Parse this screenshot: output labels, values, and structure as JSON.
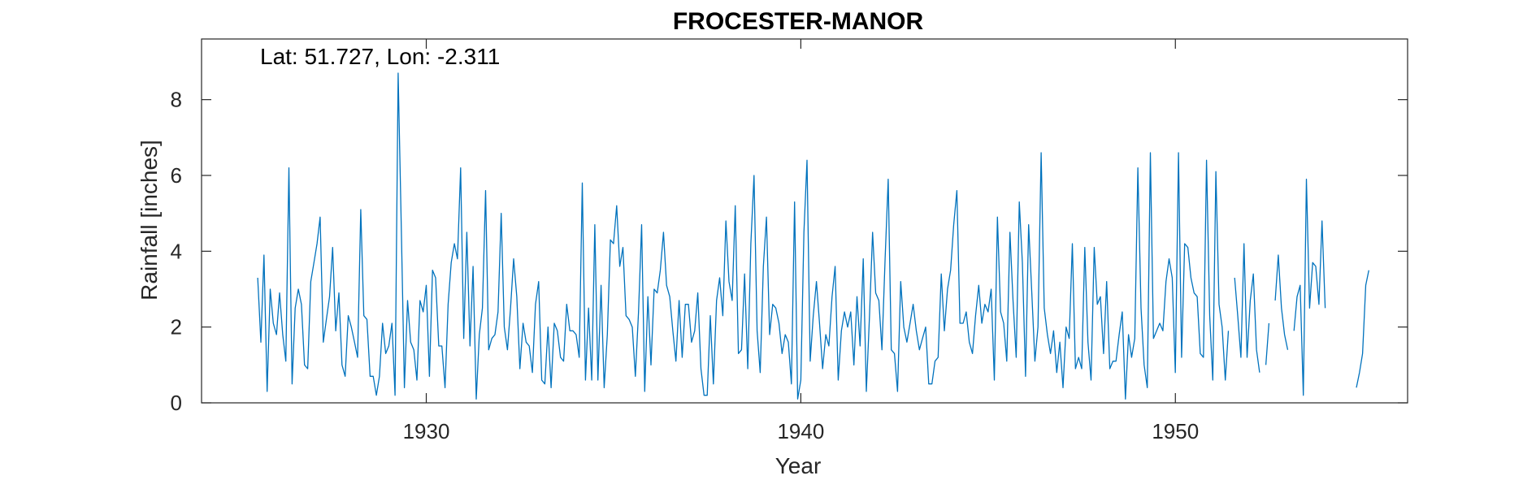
{
  "chart_data": {
    "type": "line",
    "title": "FROCESTER-MANOR",
    "xlabel": "Year",
    "ylabel": "Rainfall [inches]",
    "annotation": "Lat: 51.727, Lon: -2.311",
    "xlim": [
      1924.0,
      1956.2
    ],
    "ylim": [
      0,
      9.6
    ],
    "x_ticks": [
      1930,
      1940,
      1950
    ],
    "x_tick_labels": [
      "1930",
      "1940",
      "1950"
    ],
    "y_ticks": [
      0,
      2,
      4,
      6,
      8
    ],
    "y_tick_labels": [
      "0",
      "2",
      "4",
      "6",
      "8"
    ],
    "grid": false,
    "box": true,
    "series": [
      {
        "color": "#0072BD",
        "start_year": 1925.5,
        "step": 0.08333,
        "values": [
          3.3,
          1.6,
          3.9,
          0.3,
          3.0,
          2.1,
          1.8,
          2.9,
          1.8,
          1.1,
          6.2,
          0.5,
          2.5,
          3.0,
          2.6,
          1.0,
          0.9,
          3.2,
          3.7,
          4.2,
          4.9,
          1.6,
          2.2,
          2.8,
          4.1,
          1.9,
          2.9,
          1.0,
          0.7,
          2.3,
          2.0,
          1.6,
          1.2,
          5.1,
          2.3,
          2.2,
          0.7,
          0.7,
          0.2,
          0.7,
          2.1,
          1.3,
          1.5,
          2.1,
          0.2,
          8.7,
          4.6,
          0.4,
          2.7,
          1.6,
          1.4,
          0.6,
          2.7,
          2.4,
          3.1,
          0.7,
          3.5,
          3.3,
          1.5,
          1.5,
          0.4,
          2.6,
          3.7,
          4.2,
          3.8,
          6.2,
          1.7,
          4.5,
          1.5,
          3.6,
          0.1,
          1.8,
          2.5,
          5.6,
          1.4,
          1.7,
          1.8,
          2.4,
          5.0,
          2.0,
          1.4,
          2.5,
          3.8,
          2.8,
          0.9,
          2.1,
          1.6,
          1.5,
          0.8,
          2.6,
          3.2,
          0.6,
          0.5,
          2.0,
          0.4,
          2.1,
          1.9,
          1.2,
          1.1,
          2.6,
          1.9,
          1.9,
          1.8,
          1.2,
          5.8,
          0.6,
          2.5,
          0.6,
          4.7,
          0.6,
          3.1,
          0.4,
          1.8,
          4.3,
          4.2,
          5.2,
          3.6,
          4.1,
          2.3,
          2.2,
          2.0,
          0.7,
          2.4,
          4.7,
          0.3,
          2.8,
          1.0,
          3.0,
          2.9,
          3.5,
          4.5,
          3.1,
          2.8,
          1.9,
          1.1,
          2.7,
          1.2,
          2.6,
          2.6,
          1.6,
          1.9,
          2.9,
          0.9,
          0.2,
          0.2,
          2.3,
          0.5,
          2.7,
          3.3,
          2.3,
          4.8,
          3.2,
          2.7,
          5.2,
          1.3,
          1.4,
          3.4,
          0.9,
          4.2,
          6.0,
          1.9,
          0.8,
          3.6,
          4.9,
          1.8,
          2.6,
          2.5,
          2.1,
          1.3,
          1.8,
          1.6,
          0.5,
          5.3,
          0.1,
          0.6,
          4.5,
          6.4,
          1.1,
          2.3,
          3.2,
          2.1,
          0.9,
          1.8,
          1.5,
          2.8,
          3.6,
          0.6,
          1.9,
          2.4,
          2.0,
          2.4,
          1.0,
          2.8,
          1.5,
          3.8,
          0.3,
          2.3,
          4.5,
          2.9,
          2.7,
          1.4,
          3.8,
          5.9,
          1.4,
          1.3,
          0.3,
          3.2,
          2.0,
          1.6,
          2.1,
          2.6,
          1.9,
          1.4,
          1.7,
          2.0,
          0.5,
          0.5,
          1.1,
          1.2,
          3.4,
          1.9,
          3.0,
          3.5,
          4.7,
          5.6,
          2.1,
          2.1,
          2.4,
          1.6,
          1.3,
          2.3,
          3.1,
          2.1,
          2.6,
          2.4,
          3.0,
          0.6,
          4.9,
          2.4,
          2.1,
          1.1,
          4.5,
          2.7,
          1.2,
          5.3,
          3.7,
          0.7,
          4.7,
          2.9,
          1.1,
          2.0,
          6.6,
          2.5,
          1.8,
          1.3,
          1.9,
          0.8,
          1.6,
          0.4,
          2.0,
          1.7,
          4.2,
          0.9,
          1.2,
          0.9,
          4.1,
          1.6,
          0.6,
          4.1,
          2.6,
          2.8,
          1.3,
          3.2,
          0.9,
          1.1,
          1.1,
          1.8,
          2.4,
          0.1,
          1.8,
          1.2,
          1.7,
          6.2,
          2.5,
          1.0,
          0.4,
          6.6,
          1.7,
          1.9,
          2.1,
          1.9,
          3.2,
          3.8,
          3.3,
          0.8,
          6.6,
          1.2,
          4.2,
          4.1,
          3.3,
          2.9,
          2.8,
          1.3,
          1.2,
          6.4,
          2.3,
          0.6,
          6.1,
          2.6,
          2.0,
          0.6,
          1.9,
          null,
          3.3,
          2.3,
          1.2,
          4.2,
          1.2,
          2.7,
          3.4,
          1.4,
          0.8,
          null,
          1.0,
          2.1,
          null,
          2.7,
          3.9,
          2.5,
          1.8,
          1.4,
          null,
          1.9,
          2.8,
          3.1,
          0.2,
          5.9,
          2.5,
          3.7,
          3.6,
          2.6,
          4.8,
          2.5,
          null,
          null,
          null,
          null,
          null,
          null,
          null,
          null,
          null,
          0.4,
          0.8,
          1.3,
          3.1,
          3.5
        ]
      }
    ]
  }
}
